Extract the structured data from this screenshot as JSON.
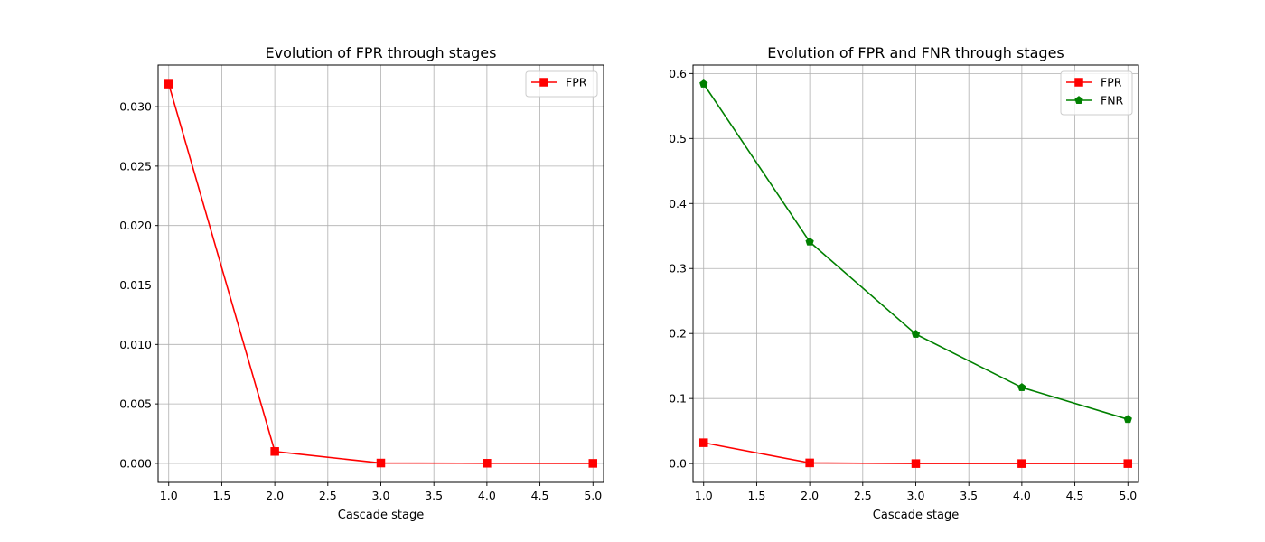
{
  "chart_data": [
    {
      "type": "line",
      "title": "Evolution of FPR through stages",
      "xlabel": "Cascade stage",
      "ylabel": "",
      "xlim": [
        0.9,
        5.1
      ],
      "ylim": [
        -0.0016,
        0.0335
      ],
      "xticks": [
        1.0,
        1.5,
        2.0,
        2.5,
        3.0,
        3.5,
        4.0,
        4.5,
        5.0
      ],
      "xtick_labels": [
        "1.0",
        "1.5",
        "2.0",
        "2.5",
        "3.0",
        "3.5",
        "4.0",
        "4.5",
        "5.0"
      ],
      "yticks": [
        0.0,
        0.005,
        0.01,
        0.015,
        0.02,
        0.025,
        0.03
      ],
      "ytick_labels": [
        "0.000",
        "0.005",
        "0.010",
        "0.015",
        "0.020",
        "0.025",
        "0.030"
      ],
      "grid": true,
      "legend_position": "top-right",
      "x": [
        1,
        2,
        3,
        4,
        5
      ],
      "series": [
        {
          "name": "FPR",
          "values": [
            0.0319,
            0.001,
            3e-05,
            1e-05,
            0.0
          ],
          "color": "#ff0000",
          "marker": "square"
        }
      ]
    },
    {
      "type": "line",
      "title": "Evolution of FPR and FNR through stages",
      "xlabel": "Cascade stage",
      "ylabel": "",
      "xlim": [
        0.9,
        5.1
      ],
      "ylim": [
        -0.029,
        0.613
      ],
      "xticks": [
        1.0,
        1.5,
        2.0,
        2.5,
        3.0,
        3.5,
        4.0,
        4.5,
        5.0
      ],
      "xtick_labels": [
        "1.0",
        "1.5",
        "2.0",
        "2.5",
        "3.0",
        "3.5",
        "4.0",
        "4.5",
        "5.0"
      ],
      "yticks": [
        0.0,
        0.1,
        0.2,
        0.3,
        0.4,
        0.5,
        0.6
      ],
      "ytick_labels": [
        "0.0",
        "0.1",
        "0.2",
        "0.3",
        "0.4",
        "0.5",
        "0.6"
      ],
      "grid": true,
      "legend_position": "top-right",
      "x": [
        1,
        2,
        3,
        4,
        5
      ],
      "series": [
        {
          "name": "FPR",
          "values": [
            0.032,
            0.001,
            0.0,
            0.0,
            0.0
          ],
          "color": "#ff0000",
          "marker": "square"
        },
        {
          "name": "FNR",
          "values": [
            0.584,
            0.341,
            0.199,
            0.117,
            0.068
          ],
          "color": "#008000",
          "marker": "pentagon"
        }
      ]
    }
  ]
}
